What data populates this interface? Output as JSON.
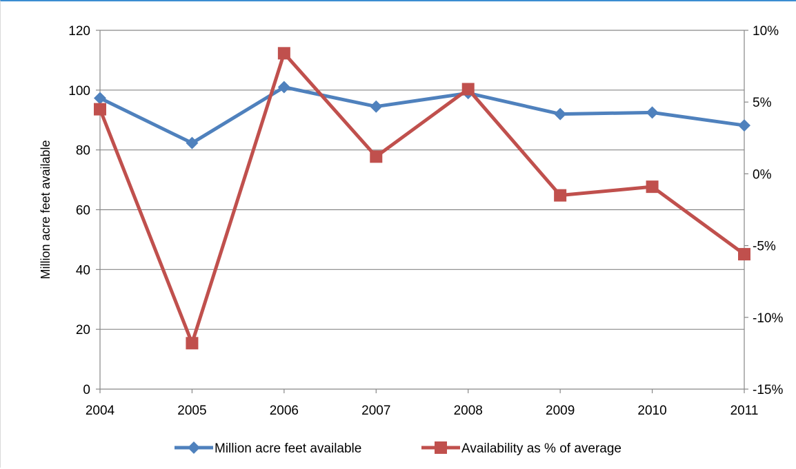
{
  "chart_data": {
    "type": "line",
    "title": "",
    "categories": [
      "2004",
      "2005",
      "2006",
      "2007",
      "2008",
      "2009",
      "2010",
      "2011"
    ],
    "y_left": {
      "label": "Million acre feet available",
      "ylim": [
        0,
        120
      ],
      "ticks": [
        0,
        20,
        40,
        60,
        80,
        100,
        120
      ],
      "tick_labels": [
        "0",
        "20",
        "40",
        "60",
        "80",
        "100",
        "120"
      ]
    },
    "y_right": {
      "label": "",
      "ylim": [
        -15,
        10
      ],
      "ticks": [
        -15,
        -10,
        -5,
        0,
        5,
        10
      ],
      "tick_labels": [
        "-15%",
        "-10%",
        "-5%",
        "0%",
        "5%",
        "10%"
      ],
      "unit": "%"
    },
    "grid": true,
    "legend_position": "bottom",
    "series": [
      {
        "name": "Million acre feet available",
        "axis": "left",
        "marker": "diamond",
        "color": "#4f81bd",
        "values": [
          97.3,
          82.3,
          101.0,
          94.5,
          99.0,
          92.0,
          92.5,
          88.2
        ]
      },
      {
        "name": "Availability as % of average",
        "axis": "right",
        "marker": "square",
        "color": "#c0504d",
        "values": [
          4.5,
          -11.8,
          8.4,
          1.2,
          5.9,
          -1.5,
          -0.9,
          -5.6
        ]
      }
    ]
  }
}
